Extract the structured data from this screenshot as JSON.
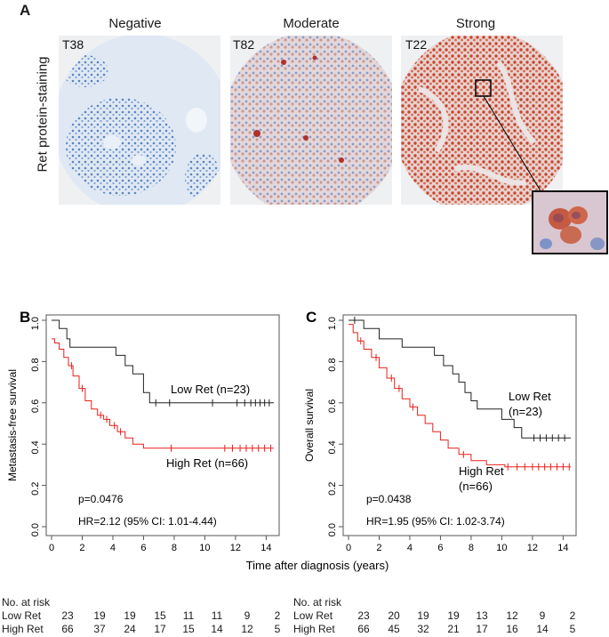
{
  "panel_a": {
    "letter": "A",
    "ylabel": "Ret protein-staining",
    "columns": [
      {
        "title": "Negative",
        "core_label": "T38"
      },
      {
        "title": "Moderate",
        "core_label": "T82"
      },
      {
        "title": "Strong",
        "core_label": "T22"
      }
    ]
  },
  "shared_xlabel": "Time after diagnosis (years)",
  "chart_data": [
    {
      "type": "line",
      "panel": "B",
      "ylabel": "Metastasis-free survival",
      "xlim": [
        0,
        14.5
      ],
      "ylim": [
        0,
        1.0
      ],
      "xticks": [
        0,
        2,
        4,
        6,
        8,
        10,
        12,
        14
      ],
      "yticks": [
        0.0,
        0.2,
        0.4,
        0.6,
        0.8,
        1.0
      ],
      "series": [
        {
          "name": "Low Ret (n=23)",
          "color": "#222222",
          "x": [
            0,
            0.5,
            0.5,
            1.0,
            1.0,
            1.2,
            1.2,
            4.2,
            4.2,
            4.8,
            4.8,
            5.3,
            5.3,
            6.0,
            6.0,
            6.4,
            6.4,
            14.5
          ],
          "y": [
            1.0,
            1.0,
            0.96,
            0.96,
            0.91,
            0.91,
            0.87,
            0.87,
            0.83,
            0.83,
            0.78,
            0.78,
            0.74,
            0.74,
            0.65,
            0.65,
            0.6,
            0.6
          ],
          "censors_x": [
            6.8,
            7.7,
            10.5,
            12.1,
            12.6,
            13.0,
            13.3,
            13.6,
            13.9,
            14.2
          ]
        },
        {
          "name": "High Ret (n=66)",
          "color": "#e8201c",
          "x": [
            0,
            0.2,
            0.2,
            0.5,
            0.5,
            0.8,
            0.8,
            1.1,
            1.1,
            1.4,
            1.4,
            1.8,
            1.8,
            2.2,
            2.2,
            2.6,
            2.6,
            3.0,
            3.0,
            3.4,
            3.4,
            3.8,
            3.8,
            4.3,
            4.3,
            4.8,
            4.8,
            5.3,
            5.3,
            6.0,
            6.0,
            14.5
          ],
          "y": [
            0.91,
            0.91,
            0.89,
            0.89,
            0.86,
            0.86,
            0.82,
            0.82,
            0.78,
            0.78,
            0.73,
            0.73,
            0.67,
            0.67,
            0.61,
            0.61,
            0.57,
            0.57,
            0.54,
            0.54,
            0.52,
            0.52,
            0.49,
            0.49,
            0.46,
            0.46,
            0.43,
            0.43,
            0.4,
            0.4,
            0.38,
            0.38
          ],
          "censors_x": [
            1.3,
            2.0,
            3.2,
            3.6,
            4.1,
            4.5,
            7.8,
            11.3,
            11.8,
            12.3,
            12.7,
            13.1,
            13.5,
            13.9,
            14.3
          ]
        }
      ],
      "annotations": {
        "p": "p=0.0476",
        "hr": "HR=2.12 (95% CI: 1.01-4.44)"
      },
      "risk_table": {
        "title": "No. at risk",
        "rows": [
          {
            "label": "Low Ret",
            "values": [
              "23",
              "19",
              "19",
              "15",
              "11",
              "11",
              "9",
              "2"
            ]
          },
          {
            "label": "High Ret",
            "values": [
              "66",
              "37",
              "24",
              "17",
              "15",
              "14",
              "12",
              "5"
            ]
          }
        ]
      }
    },
    {
      "type": "line",
      "panel": "C",
      "ylabel": "Overall survival",
      "xlim": [
        0,
        14.5
      ],
      "ylim": [
        0,
        1.0
      ],
      "xticks": [
        0,
        2,
        4,
        6,
        8,
        10,
        12,
        14
      ],
      "yticks": [
        0.0,
        0.2,
        0.4,
        0.6,
        0.8,
        1.0
      ],
      "series": [
        {
          "name": "Low Ret",
          "label_line2": "(n=23)",
          "color": "#222222",
          "x": [
            0,
            1.0,
            1.0,
            2.0,
            2.0,
            3.5,
            3.5,
            5.6,
            5.6,
            6.2,
            6.2,
            6.8,
            6.8,
            7.2,
            7.2,
            7.6,
            7.6,
            8.0,
            8.0,
            8.4,
            8.4,
            10.0,
            10.0,
            10.8,
            10.8,
            11.3,
            11.3,
            14.5
          ],
          "y": [
            1.0,
            1.0,
            0.96,
            0.96,
            0.91,
            0.91,
            0.87,
            0.87,
            0.83,
            0.83,
            0.78,
            0.78,
            0.74,
            0.74,
            0.7,
            0.7,
            0.65,
            0.65,
            0.61,
            0.61,
            0.57,
            0.57,
            0.52,
            0.52,
            0.48,
            0.48,
            0.43,
            0.43
          ],
          "censors_x": [
            0.4,
            12.1,
            12.5,
            12.9,
            13.3,
            13.7,
            14.1
          ]
        },
        {
          "name": "High Ret",
          "label_line2": "(n=66)",
          "color": "#e8201c",
          "x": [
            0,
            0.3,
            0.3,
            0.6,
            0.6,
            1.0,
            1.0,
            1.5,
            1.5,
            2.0,
            2.0,
            2.5,
            2.5,
            3.0,
            3.0,
            3.5,
            3.5,
            4.0,
            4.0,
            4.5,
            4.5,
            5.0,
            5.0,
            5.5,
            5.5,
            6.0,
            6.0,
            6.5,
            6.5,
            7.2,
            7.2,
            8.0,
            8.0,
            9.0,
            9.0,
            10.2,
            10.2,
            14.5
          ],
          "y": [
            0.98,
            0.98,
            0.94,
            0.94,
            0.9,
            0.9,
            0.86,
            0.86,
            0.82,
            0.82,
            0.77,
            0.77,
            0.72,
            0.72,
            0.67,
            0.67,
            0.62,
            0.62,
            0.58,
            0.58,
            0.54,
            0.54,
            0.5,
            0.5,
            0.46,
            0.46,
            0.42,
            0.42,
            0.38,
            0.38,
            0.35,
            0.35,
            0.32,
            0.32,
            0.3,
            0.3,
            0.29,
            0.29
          ],
          "censors_x": [
            0.8,
            1.8,
            2.8,
            3.3,
            4.2,
            7.5,
            10.4,
            11.0,
            11.5,
            12.0,
            12.4,
            12.8,
            13.2,
            13.6,
            14.0,
            14.4
          ]
        }
      ],
      "annotations": {
        "p": "p=0.0438",
        "hr": "HR=1.95 (95% CI: 1.02-3.74)"
      },
      "risk_table": {
        "title": "No. at risk",
        "rows": [
          {
            "label": "Low Ret",
            "values": [
              "23",
              "20",
              "19",
              "19",
              "13",
              "12",
              "9",
              "2"
            ]
          },
          {
            "label": "High Ret",
            "values": [
              "66",
              "45",
              "32",
              "21",
              "17",
              "16",
              "14",
              "5"
            ]
          }
        ]
      }
    }
  ]
}
